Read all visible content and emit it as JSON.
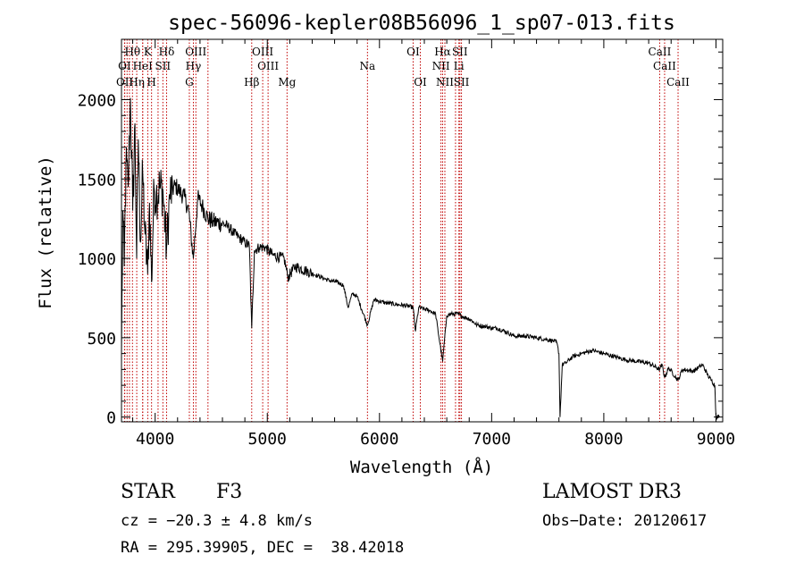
{
  "chart_data": {
    "type": "line",
    "title": "spec-56096-kepler08B56096_1_sp07-013.fits",
    "xlabel": "Wavelength (Å)",
    "ylabel": "Flux (relative)",
    "xlim": [
      3700,
      9060
    ],
    "ylim": [
      -30,
      2380
    ],
    "x_ticks": [
      4000,
      5000,
      6000,
      7000,
      8000,
      9000
    ],
    "y_ticks": [
      0,
      500,
      1000,
      1500,
      2000
    ],
    "grid": false,
    "series": [
      {
        "name": "spectrum",
        "anchors": [
          [
            3700,
            400
          ],
          [
            3712,
            1300
          ],
          [
            3725,
            950
          ],
          [
            3740,
            1600
          ],
          [
            3760,
            1450
          ],
          [
            3780,
            2010
          ],
          [
            3800,
            1300
          ],
          [
            3820,
            1850
          ],
          [
            3835,
            1000
          ],
          [
            3850,
            1750
          ],
          [
            3870,
            1100
          ],
          [
            3889,
            1550
          ],
          [
            3910,
            1150
          ],
          [
            3933,
            900
          ],
          [
            3950,
            1350
          ],
          [
            3968,
            850
          ],
          [
            3990,
            1450
          ],
          [
            4010,
            1400
          ],
          [
            4040,
            1450
          ],
          [
            4070,
            1420
          ],
          [
            4101,
            1050
          ],
          [
            4130,
            1400
          ],
          [
            4180,
            1460
          ],
          [
            4220,
            1420
          ],
          [
            4260,
            1390
          ],
          [
            4300,
            1300
          ],
          [
            4340,
            1000
          ],
          [
            4380,
            1380
          ],
          [
            4420,
            1330
          ],
          [
            4470,
            1250
          ],
          [
            4520,
            1230
          ],
          [
            4600,
            1220
          ],
          [
            4650,
            1200
          ],
          [
            4700,
            1160
          ],
          [
            4750,
            1130
          ],
          [
            4800,
            1100
          ],
          [
            4840,
            1080
          ],
          [
            4861,
            560
          ],
          [
            4885,
            1050
          ],
          [
            4930,
            1070
          ],
          [
            4980,
            1070
          ],
          [
            5050,
            1020
          ],
          [
            5150,
            1000
          ],
          [
            5183,
            880
          ],
          [
            5250,
            950
          ],
          [
            5350,
            920
          ],
          [
            5450,
            890
          ],
          [
            5550,
            860
          ],
          [
            5620,
            850
          ],
          [
            5680,
            830
          ],
          [
            5720,
            690
          ],
          [
            5760,
            780
          ],
          [
            5800,
            760
          ],
          [
            5893,
            580
          ],
          [
            5950,
            740
          ],
          [
            6050,
            720
          ],
          [
            6150,
            710
          ],
          [
            6250,
            700
          ],
          [
            6300,
            690
          ],
          [
            6320,
            540
          ],
          [
            6350,
            690
          ],
          [
            6450,
            670
          ],
          [
            6500,
            650
          ],
          [
            6563,
            350
          ],
          [
            6600,
            640
          ],
          [
            6650,
            650
          ],
          [
            6700,
            650
          ],
          [
            6750,
            630
          ],
          [
            6800,
            620
          ],
          [
            6870,
            580
          ],
          [
            6950,
            570
          ],
          [
            7000,
            560
          ],
          [
            7050,
            560
          ],
          [
            7150,
            530
          ],
          [
            7200,
            510
          ],
          [
            7300,
            510
          ],
          [
            7400,
            500
          ],
          [
            7480,
            490
          ],
          [
            7550,
            480
          ],
          [
            7580,
            470
          ],
          [
            7600,
            400
          ],
          [
            7610,
            0
          ],
          [
            7630,
            330
          ],
          [
            7660,
            340
          ],
          [
            7720,
            380
          ],
          [
            7800,
            400
          ],
          [
            7900,
            420
          ],
          [
            8000,
            400
          ],
          [
            8100,
            380
          ],
          [
            8200,
            360
          ],
          [
            8300,
            350
          ],
          [
            8400,
            340
          ],
          [
            8498,
            300
          ],
          [
            8520,
            330
          ],
          [
            8542,
            250
          ],
          [
            8580,
            310
          ],
          [
            8662,
            230
          ],
          [
            8700,
            300
          ],
          [
            8800,
            290
          ],
          [
            8880,
            330
          ],
          [
            8930,
            260
          ],
          [
            8960,
            230
          ],
          [
            8990,
            200
          ],
          [
            9000,
            0
          ],
          [
            9030,
            0
          ]
        ]
      }
    ],
    "line_markers": [
      {
        "label": "Hθ",
        "wave": 3798,
        "row": 1
      },
      {
        "label": "K",
        "wave": 3934,
        "row": 1
      },
      {
        "label": "Hδ",
        "wave": 4102,
        "row": 1
      },
      {
        "label": "OIII",
        "wave": 4363,
        "row": 1
      },
      {
        "label": "OIII",
        "wave": 4959,
        "row": 1
      },
      {
        "label": "OI",
        "wave": 6300,
        "row": 1
      },
      {
        "label": "Hα",
        "wave": 6563,
        "row": 1
      },
      {
        "label": "SII",
        "wave": 6717,
        "row": 1
      },
      {
        "label": "CaII",
        "wave": 8498,
        "row": 1
      },
      {
        "label": "OI",
        "wave": 3727,
        "row": 2
      },
      {
        "label": "HeI",
        "wave": 3889,
        "row": 2
      },
      {
        "label": "SII",
        "wave": 4069,
        "row": 2
      },
      {
        "label": "Hγ",
        "wave": 4341,
        "row": 2
      },
      {
        "label": "OIII",
        "wave": 5007,
        "row": 2
      },
      {
        "label": "Na",
        "wave": 5893,
        "row": 2
      },
      {
        "label": "NII",
        "wave": 6548,
        "row": 2
      },
      {
        "label": "Li",
        "wave": 6708,
        "row": 2
      },
      {
        "label": "CaII",
        "wave": 8542,
        "row": 2
      },
      {
        "label": "OII",
        "wave": 3729,
        "row": 3
      },
      {
        "label": "Hη",
        "wave": 3836,
        "row": 3
      },
      {
        "label": "H",
        "wave": 3968,
        "row": 3
      },
      {
        "label": "G",
        "wave": 4305,
        "row": 3
      },
      {
        "label": "Hβ",
        "wave": 4861,
        "row": 3
      },
      {
        "label": "Mg",
        "wave": 5176,
        "row": 3
      },
      {
        "label": "OI",
        "wave": 6364,
        "row": 3
      },
      {
        "label": "NII",
        "wave": 6583,
        "row": 3
      },
      {
        "label": "SII",
        "wave": 6731,
        "row": 3
      },
      {
        "label": "CaII",
        "wave": 8662,
        "row": 3
      }
    ],
    "extra_marker_waves": [
      3750,
      3771,
      3889,
      4026,
      4471,
      6678
    ],
    "marker_color": "#c00000",
    "line_color": "#000000"
  },
  "info": {
    "object_class": "STAR",
    "subclass": "F3",
    "survey": "LAMOST DR3",
    "cz": "cz = −20.3 ± 4.8 km/s",
    "obs_date": "Obs−Date: 20120617",
    "coords": "RA = 295.39905, DEC =  38.42018"
  }
}
